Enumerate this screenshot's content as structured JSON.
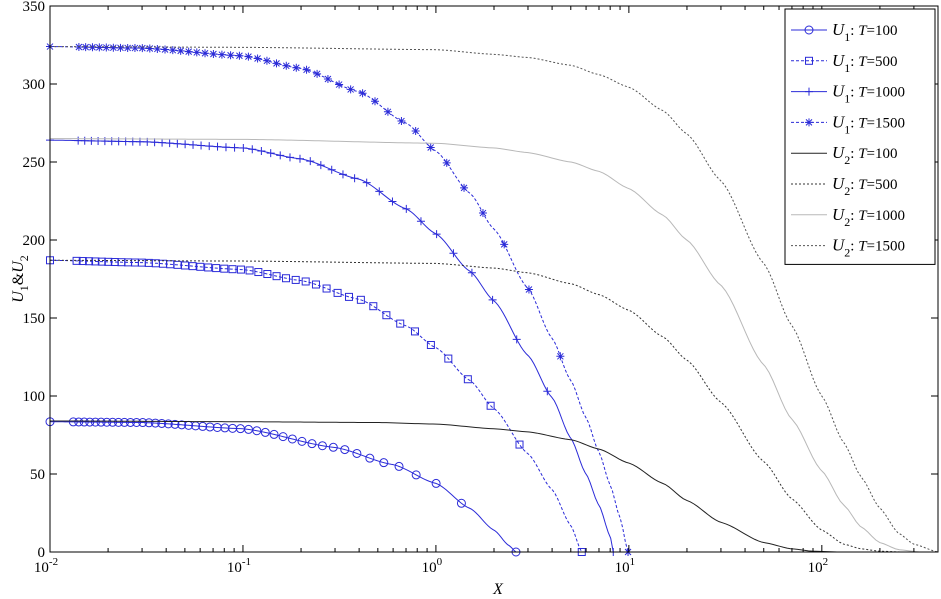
{
  "chart_data": {
    "type": "line",
    "xlabel": "X",
    "ylabel": "U1&U2",
    "x_scale": "log",
    "xlim": [
      0.01,
      400
    ],
    "ylim": [
      0,
      350
    ],
    "x_ticks": [
      {
        "value": 0.01,
        "base": "10",
        "exp": "-2"
      },
      {
        "value": 0.1,
        "base": "10",
        "exp": "-1"
      },
      {
        "value": 1,
        "base": "10",
        "exp": "0"
      },
      {
        "value": 10,
        "base": "10",
        "exp": "1"
      },
      {
        "value": 100,
        "base": "10",
        "exp": "2"
      }
    ],
    "y_ticks": [
      0,
      50,
      100,
      150,
      200,
      250,
      300,
      350
    ],
    "grid": false,
    "legend_position": "top-right",
    "series": [
      {
        "name": "U1: T=100",
        "var": "U",
        "sub": "1",
        "t_label": "T",
        "t_value": "=100",
        "color": "#2b2bd8",
        "dash": "",
        "marker": "circle",
        "x": [
          0.01,
          0.03,
          0.1,
          0.3,
          0.6,
          1.0,
          1.5,
          2.0,
          2.4,
          2.6
        ],
        "y": [
          83.5,
          83,
          79,
          67,
          56,
          44,
          28,
          14,
          4,
          0
        ]
      },
      {
        "name": "U1: T=500",
        "var": "U",
        "sub": "1",
        "t_label": "T",
        "t_value": "=500",
        "color": "#2b2bd8",
        "dash": "3,2",
        "marker": "square",
        "x": [
          0.01,
          0.03,
          0.1,
          0.2,
          0.4,
          0.7,
          1.0,
          1.5,
          2.0,
          3.0,
          4.0,
          5.0,
          5.7
        ],
        "y": [
          187,
          185.5,
          181,
          174,
          162,
          145,
          131,
          110,
          92,
          63,
          40,
          17,
          0
        ]
      },
      {
        "name": "U1: T=1000",
        "var": "U",
        "sub": "1",
        "t_label": "T",
        "t_value": "=1000",
        "color": "#2b2bd8",
        "dash": "",
        "marker": "plus",
        "x": [
          0.01,
          0.03,
          0.1,
          0.2,
          0.4,
          0.7,
          1.0,
          1.5,
          2.0,
          3.0,
          4.0,
          5.0,
          6.0,
          7.0,
          8.0,
          8.3
        ],
        "y": [
          264,
          263,
          259,
          252,
          239,
          220,
          204,
          180,
          161,
          126,
          99,
          73,
          50,
          30,
          10,
          0
        ]
      },
      {
        "name": "U1: T=1500",
        "var": "U",
        "sub": "1",
        "t_label": "T",
        "t_value": "=1500",
        "color": "#2b2bd8",
        "dash": "3,2",
        "marker": "star",
        "x": [
          0.01,
          0.03,
          0.1,
          0.2,
          0.4,
          0.7,
          1.0,
          1.5,
          2.0,
          3.0,
          4.0,
          5.0,
          6.0,
          7.0,
          8.0,
          9.0,
          9.9
        ],
        "y": [
          324,
          323,
          318,
          310,
          295,
          275,
          257,
          230,
          207,
          169,
          137,
          110,
          86,
          64,
          43,
          22,
          0
        ]
      },
      {
        "name": "U2: T=100",
        "var": "U",
        "sub": "2",
        "t_label": "T",
        "t_value": "=100",
        "color": "#222222",
        "dash": "",
        "marker": "none",
        "x": [
          0.01,
          0.1,
          0.5,
          1.0,
          2.0,
          3.0,
          5.0,
          7.0,
          10,
          15,
          20,
          30,
          50,
          70,
          90,
          120
        ],
        "y": [
          84,
          83.5,
          83,
          82,
          79,
          77,
          72,
          66,
          57,
          44,
          33,
          19,
          6,
          2,
          0.5,
          0
        ]
      },
      {
        "name": "U2: T=500",
        "var": "U",
        "sub": "2",
        "t_label": "T",
        "t_value": "=500",
        "color": "#333333",
        "dash": "2,2",
        "marker": "none",
        "x": [
          0.01,
          0.1,
          1.0,
          2.0,
          3.0,
          5.0,
          7.0,
          10,
          15,
          20,
          30,
          50,
          70,
          100,
          130,
          160,
          200,
          260
        ],
        "y": [
          187,
          186.5,
          185,
          182,
          179,
          172,
          165,
          155,
          138,
          123,
          96,
          58,
          34,
          14,
          5,
          2,
          0.5,
          0
        ]
      },
      {
        "name": "U2: T=1000",
        "var": "U",
        "sub": "2",
        "t_label": "T",
        "t_value": "=1000",
        "color": "#b8b8b8",
        "dash": "",
        "marker": "none",
        "x": [
          0.01,
          0.1,
          1.0,
          2.0,
          3.0,
          5.0,
          7.0,
          10,
          15,
          20,
          30,
          50,
          70,
          100,
          130,
          160,
          200,
          250,
          320
        ],
        "y": [
          265,
          264.5,
          262,
          259,
          256,
          250,
          244,
          233,
          216,
          200,
          171,
          120,
          85,
          52,
          30,
          16,
          6,
          1.5,
          0
        ]
      },
      {
        "name": "U2: T=1500",
        "var": "U",
        "sub": "2",
        "t_label": "T",
        "t_value": "=1500",
        "color": "#555555",
        "dash": "2,2",
        "marker": "none",
        "x": [
          0.01,
          0.1,
          1.0,
          2.0,
          3.0,
          5.0,
          7.0,
          10,
          15,
          20,
          30,
          50,
          70,
          100,
          130,
          160,
          200,
          250,
          300,
          400
        ],
        "y": [
          324,
          323.5,
          322,
          319,
          317,
          312,
          306,
          298,
          283,
          268,
          238,
          185,
          145,
          100,
          70,
          48,
          28,
          12,
          5,
          0
        ]
      }
    ]
  }
}
